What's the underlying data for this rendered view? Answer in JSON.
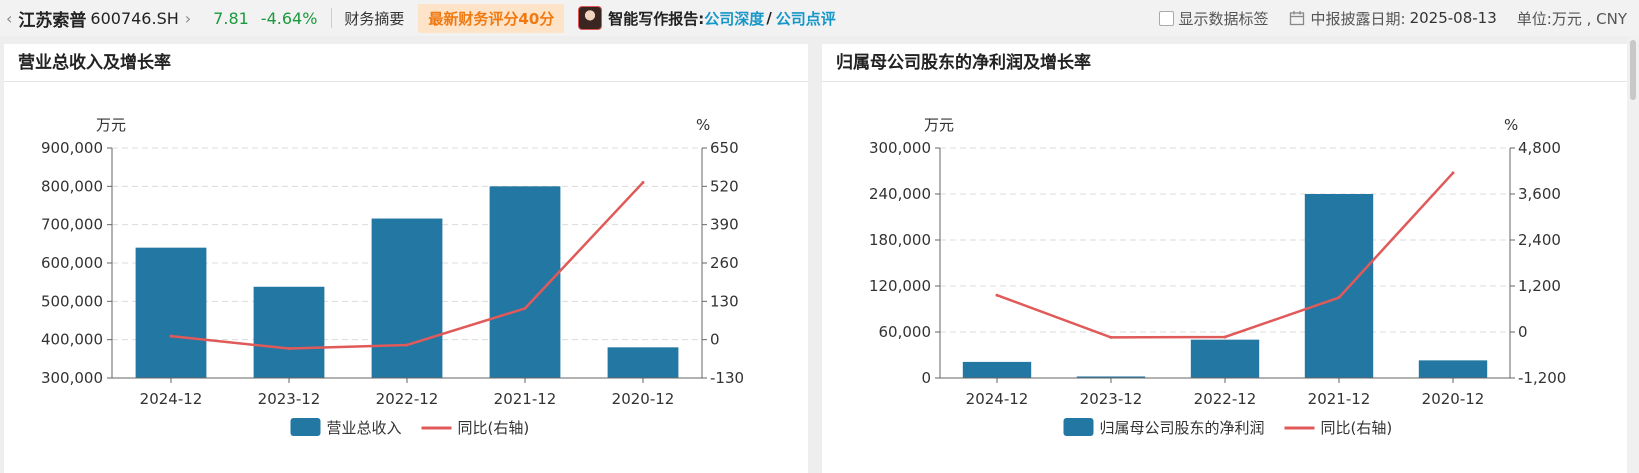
{
  "header": {
    "stock_name": "江苏索普",
    "stock_code": "600746.SH",
    "price": "7.81",
    "change": "-4.64%",
    "summary_label": "财务摘要",
    "score_badge": "最新财务评分40分",
    "ai_label": "智能写作报告:",
    "ai_link_1": "公司深度",
    "ai_slash": "/",
    "ai_link_2": "公司点评",
    "show_labels": "显示数据标签",
    "disclosure_label": "中报披露日期:",
    "disclosure_date": "2025-08-13",
    "unit": "单位:万元 , CNY"
  },
  "chart_data": [
    {
      "type": "bar",
      "title": "营业总收入及增长率",
      "y_unit": "万元",
      "y2_unit": "%",
      "categories": [
        "2024-12",
        "2023-12",
        "2022-12",
        "2021-12",
        "2020-12"
      ],
      "ylim": [
        300000,
        900000
      ],
      "yticks": [
        "900,000",
        "800,000",
        "700,000",
        "600,000",
        "500,000",
        "400,000",
        "300,000"
      ],
      "y2lim": [
        -130,
        650
      ],
      "y2ticks": [
        "650",
        "520",
        "390",
        "260",
        "130",
        "0",
        "-130"
      ],
      "grid": true,
      "legend_position": "bottom",
      "series": [
        {
          "name": "营业总收入",
          "kind": "bar",
          "color": "#2277a3",
          "values": [
            640000,
            538000,
            716000,
            800000,
            380000
          ]
        },
        {
          "name": "同比(右轴)",
          "kind": "line",
          "axis": "right",
          "color": "#e05a5a",
          "values": [
            12,
            -30,
            -18,
            106,
            533
          ]
        }
      ]
    },
    {
      "type": "bar",
      "title": "归属母公司股东的净利润及增长率",
      "y_unit": "万元",
      "y2_unit": "%",
      "categories": [
        "2024-12",
        "2023-12",
        "2022-12",
        "2021-12",
        "2020-12"
      ],
      "ylim": [
        0,
        300000
      ],
      "yticks": [
        "300,000",
        "240,000",
        "180,000",
        "120,000",
        "60,000",
        "0"
      ],
      "y2lim": [
        -1200,
        4800
      ],
      "y2ticks": [
        "4,800",
        "3,600",
        "2,400",
        "1,200",
        "0",
        "-1,200"
      ],
      "grid": true,
      "legend_position": "bottom",
      "series": [
        {
          "name": "归属母公司股东的净利润",
          "kind": "bar",
          "color": "#2277a3",
          "values": [
            21000,
            2000,
            50000,
            240000,
            23000
          ]
        },
        {
          "name": "同比(右轴)",
          "kind": "line",
          "axis": "right",
          "color": "#e05a5a",
          "values": [
            960,
            -140,
            -130,
            900,
            4150
          ]
        }
      ]
    }
  ]
}
